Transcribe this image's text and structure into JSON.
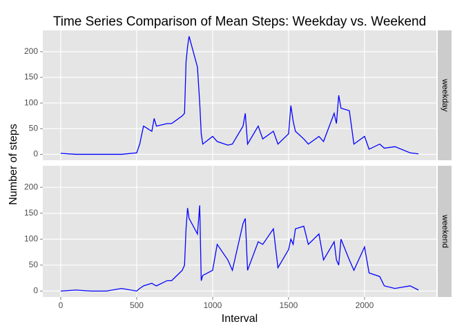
{
  "chart_data": {
    "type": "line",
    "title": "Time Series Comparison of Mean Steps: Weekday vs. Weekend",
    "x_label": "Interval",
    "y_label": "Number of steps",
    "facet": true,
    "grid": true,
    "x": [
      0,
      100,
      200,
      300,
      400,
      500,
      520,
      545,
      600,
      615,
      630,
      700,
      730,
      800,
      815,
      825,
      835,
      845,
      900,
      915,
      925,
      935,
      1000,
      1030,
      1100,
      1130,
      1200,
      1215,
      1230,
      1300,
      1330,
      1400,
      1430,
      1500,
      1515,
      1530,
      1545,
      1600,
      1630,
      1700,
      1730,
      1800,
      1815,
      1830,
      1845,
      1900,
      1930,
      2000,
      2030,
      2100,
      2130,
      2200,
      2300,
      2355
    ],
    "series": [
      {
        "name": "weekday",
        "color": "#0000ff",
        "values": [
          2,
          0,
          0,
          0,
          0,
          3,
          20,
          55,
          45,
          70,
          55,
          60,
          60,
          75,
          80,
          180,
          210,
          230,
          170,
          100,
          40,
          20,
          35,
          25,
          18,
          20,
          55,
          80,
          20,
          55,
          30,
          45,
          20,
          40,
          95,
          65,
          45,
          30,
          20,
          35,
          25,
          80,
          60,
          115,
          90,
          85,
          20,
          35,
          10,
          20,
          12,
          15,
          3,
          1
        ]
      },
      {
        "name": "weekend",
        "color": "#0000ff",
        "values": [
          0,
          2,
          0,
          0,
          5,
          0,
          5,
          10,
          15,
          12,
          10,
          20,
          20,
          40,
          50,
          120,
          160,
          140,
          110,
          165,
          20,
          30,
          40,
          90,
          60,
          40,
          130,
          140,
          40,
          95,
          90,
          120,
          45,
          80,
          100,
          90,
          120,
          125,
          90,
          110,
          60,
          95,
          60,
          50,
          100,
          60,
          40,
          85,
          35,
          28,
          10,
          5,
          10,
          2
        ]
      }
    ],
    "xlim": [
      -118,
      2473
    ],
    "xticks": [
      0,
      500,
      1000,
      1500,
      2000
    ],
    "ylim": [
      -11.5,
      241.5
    ],
    "yticks": [
      0,
      50,
      100,
      150,
      200
    ]
  }
}
